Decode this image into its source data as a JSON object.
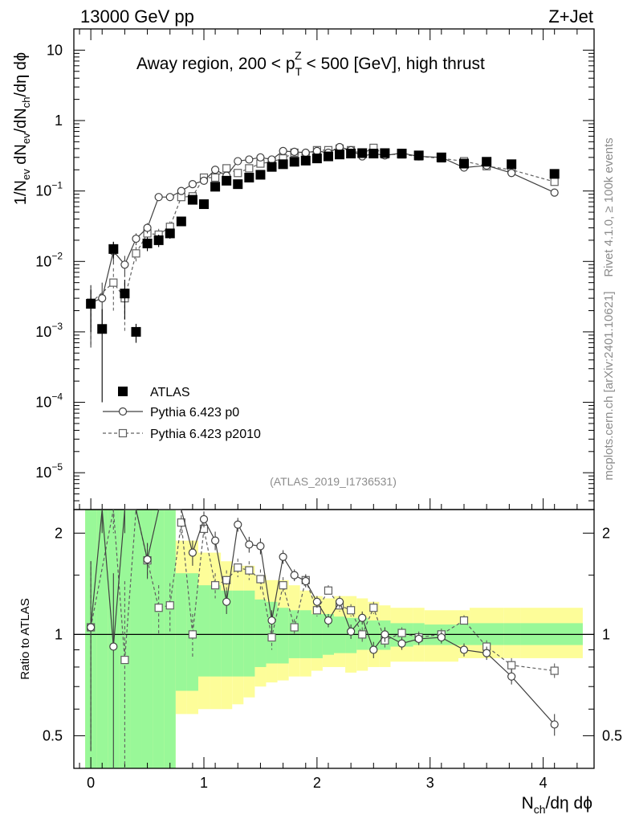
{
  "header": {
    "left": "13000 GeV pp",
    "right": "Z+Jet"
  },
  "side": {
    "rivet": "Rivet 4.1.0, ≥ 100k events",
    "mcplots": "mcplots.cern.ch [arXiv:2401.10621]"
  },
  "chart_data": {
    "type": "scatter",
    "title_parts": [
      "Away region, 200 < p",
      "T",
      "Z",
      " < 500 [GeV], high thrust"
    ],
    "analysis_label": "(ATLAS_2019_I1736531)",
    "xlabel": [
      "N",
      "ch",
      "/dη dϕ"
    ],
    "ylabel": [
      "1/N",
      "ev",
      " dN",
      "ev",
      "/dN",
      "ch",
      "/dη dϕ"
    ],
    "ratio_ylabel": "Ratio to ATLAS",
    "xlim": [
      -0.15,
      4.45
    ],
    "ylim": [
      3e-06,
      20
    ],
    "ratio_ylim": [
      0.4,
      2.35
    ],
    "x_ticks": [
      0,
      1,
      2,
      3,
      4
    ],
    "y_ticks": [
      {
        "v": 1e-05,
        "b": "10",
        "e": "−5"
      },
      {
        "v": 0.0001,
        "b": "10",
        "e": "−4"
      },
      {
        "v": 0.001,
        "b": "10",
        "e": "−3"
      },
      {
        "v": 0.01,
        "b": "10",
        "e": "−2"
      },
      {
        "v": 0.1,
        "b": "10",
        "e": "−1"
      },
      {
        "v": 1,
        "b": "1",
        "e": ""
      },
      {
        "v": 10,
        "b": "10",
        "e": ""
      }
    ],
    "ratio_ticks": [
      {
        "v": 0.5,
        "t": "0.5"
      },
      {
        "v": 1,
        "t": "1"
      },
      {
        "v": 2,
        "t": "2"
      }
    ],
    "legend": [
      "ATLAS",
      "Pythia 6.423 p0",
      "Pythia 6.423 p2010"
    ],
    "x": [
      0.0,
      0.1,
      0.2,
      0.3,
      0.4,
      0.5,
      0.6,
      0.7,
      0.8,
      0.9,
      1.0,
      1.1,
      1.2,
      1.3,
      1.4,
      1.5,
      1.6,
      1.7,
      1.8,
      1.9,
      2.0,
      2.1,
      2.2,
      2.3,
      2.4,
      2.5,
      2.6,
      2.75,
      2.9,
      3.1,
      3.3,
      3.5,
      3.72,
      4.1
    ],
    "atlas": [
      0.0025,
      0.0011,
      0.015,
      0.0035,
      0.001,
      0.018,
      0.02,
      0.025,
      0.037,
      0.075,
      0.065,
      0.115,
      0.14,
      0.125,
      0.155,
      0.17,
      0.22,
      0.24,
      0.26,
      0.27,
      0.29,
      0.31,
      0.33,
      0.34,
      0.345,
      0.34,
      0.345,
      0.34,
      0.32,
      0.3,
      0.245,
      0.26,
      0.24,
      0.175
    ],
    "atlas_err": [
      0.0015,
      0.001,
      0.004,
      0.002,
      0.0003,
      0.004,
      0.004,
      0.004,
      0.005,
      0.01,
      0.008,
      0.01,
      0.01,
      0.01,
      0.01,
      0.01,
      0.015,
      0.015,
      0.015,
      0.015,
      0.015,
      0.015,
      0.015,
      0.015,
      0.015,
      0.015,
      0.015,
      0.015,
      0.015,
      0.015,
      0.012,
      0.012,
      0.012,
      0.01
    ],
    "p0": [
      0.0026,
      0.003,
      0.014,
      0.009,
      0.021,
      0.03,
      0.082,
      0.082,
      0.1,
      0.125,
      0.14,
      0.2,
      0.165,
      0.265,
      0.28,
      0.3,
      0.28,
      0.37,
      0.36,
      0.35,
      0.37,
      0.35,
      0.42,
      0.38,
      0.31,
      0.34,
      0.32,
      0.345,
      0.31,
      0.3,
      0.215,
      0.23,
      0.18,
      0.095
    ],
    "p0_err": [
      0.002,
      0.002,
      0.005,
      0.003,
      0.004,
      0.005,
      0.01,
      0.01,
      0.012,
      0.015,
      0.015,
      0.015,
      0.015,
      0.015,
      0.015,
      0.015,
      0.015,
      0.015,
      0.015,
      0.015,
      0.015,
      0.015,
      0.015,
      0.015,
      0.015,
      0.015,
      0.015,
      0.015,
      0.015,
      0.015,
      0.015,
      0.015,
      0.012,
      0.01
    ],
    "p2010": [
      0.0026,
      null,
      0.005,
      0.003,
      0.013,
      0.025,
      0.024,
      0.031,
      0.082,
      0.084,
      0.155,
      0.155,
      0.21,
      0.18,
      0.21,
      0.245,
      0.26,
      0.29,
      0.35,
      0.32,
      0.38,
      0.38,
      0.4,
      0.38,
      0.34,
      0.41,
      0.33,
      0.33,
      0.31,
      0.29,
      0.265,
      0.225,
      0.2,
      0.135
    ],
    "p2010_err": [
      0.002,
      null,
      0.003,
      0.002,
      0.003,
      0.005,
      0.005,
      0.006,
      0.01,
      0.01,
      0.015,
      0.015,
      0.015,
      0.015,
      0.015,
      0.015,
      0.015,
      0.015,
      0.015,
      0.015,
      0.015,
      0.015,
      0.015,
      0.015,
      0.015,
      0.015,
      0.015,
      0.015,
      0.015,
      0.015,
      0.015,
      0.015,
      0.012,
      0.01
    ],
    "ratio_p0": [
      1.05,
      2.6,
      0.92,
      2.6,
      2.6,
      1.67,
      2.6,
      2.6,
      2.6,
      1.75,
      2.2,
      1.9,
      1.25,
      2.12,
      1.85,
      1.83,
      1.1,
      1.7,
      1.5,
      1.44,
      1.25,
      1.1,
      1.25,
      1.02,
      1.12,
      0.9,
      1.0,
      0.94,
      0.97,
      0.98,
      0.9,
      0.88,
      0.75,
      0.54
    ],
    "ratio_p0_err": [
      0.6,
      0.6,
      0.6,
      0.6,
      0.3,
      0.2,
      0.2,
      0.2,
      0.2,
      0.15,
      0.12,
      0.12,
      0.1,
      0.1,
      0.1,
      0.1,
      0.08,
      0.08,
      0.06,
      0.06,
      0.05,
      0.05,
      0.05,
      0.05,
      0.05,
      0.05,
      0.05,
      0.04,
      0.04,
      0.04,
      0.04,
      0.04,
      0.04,
      0.04
    ],
    "ratio_p2010": [
      1.05,
      null,
      2.6,
      0.84,
      2.6,
      1.66,
      1.2,
      1.22,
      2.15,
      1.0,
      2.06,
      1.4,
      1.45,
      1.58,
      1.55,
      1.46,
      0.98,
      1.4,
      1.05,
      1.45,
      1.18,
      1.35,
      1.22,
      1.18,
      1.0,
      1.2,
      0.96,
      1.01,
      0.98,
      1.0,
      1.1,
      0.92,
      0.81,
      0.78
    ],
    "ratio_p2010_err": [
      0.6,
      null,
      0.6,
      0.6,
      0.3,
      0.2,
      0.2,
      0.2,
      0.2,
      0.15,
      0.12,
      0.12,
      0.1,
      0.1,
      0.1,
      0.1,
      0.08,
      0.08,
      0.06,
      0.06,
      0.05,
      0.05,
      0.05,
      0.05,
      0.05,
      0.05,
      0.05,
      0.04,
      0.04,
      0.04,
      0.04,
      0.04,
      0.04,
      0.04
    ],
    "band_edges": [
      -0.05,
      0.05,
      0.15,
      0.25,
      0.35,
      0.45,
      0.55,
      0.65,
      0.75,
      0.85,
      0.95,
      1.05,
      1.15,
      1.25,
      1.35,
      1.45,
      1.55,
      1.65,
      1.75,
      1.85,
      1.95,
      2.05,
      2.15,
      2.25,
      2.35,
      2.45,
      2.55,
      2.65,
      2.85,
      2.95,
      3.25,
      3.35,
      3.65,
      3.8,
      4.35
    ],
    "band_green": [
      [
        0.4,
        2.35
      ],
      [
        0.4,
        2.35
      ],
      [
        0.4,
        2.35
      ],
      [
        0.4,
        2.35
      ],
      [
        0.4,
        2.35
      ],
      [
        0.4,
        2.35
      ],
      [
        0.4,
        2.35
      ],
      [
        0.4,
        2.35
      ],
      [
        0.68,
        1.52
      ],
      [
        0.68,
        1.52
      ],
      [
        0.75,
        1.4
      ],
      [
        0.75,
        1.4
      ],
      [
        0.75,
        1.35
      ],
      [
        0.75,
        1.35
      ],
      [
        0.75,
        1.35
      ],
      [
        0.8,
        1.27
      ],
      [
        0.82,
        1.25
      ],
      [
        0.82,
        1.2
      ],
      [
        0.85,
        1.18
      ],
      [
        0.85,
        1.18
      ],
      [
        0.85,
        1.15
      ],
      [
        0.87,
        1.15
      ],
      [
        0.88,
        1.13
      ],
      [
        0.88,
        1.12
      ],
      [
        0.9,
        1.12
      ],
      [
        0.9,
        1.1
      ],
      [
        0.9,
        1.1
      ],
      [
        0.92,
        1.08
      ],
      [
        0.93,
        1.08
      ],
      [
        0.93,
        1.07
      ],
      [
        0.93,
        1.08
      ],
      [
        0.93,
        1.08
      ],
      [
        0.93,
        1.08
      ],
      [
        0.93,
        1.08
      ]
    ],
    "band_yellow": [
      [
        0.4,
        2.35
      ],
      [
        0.4,
        2.35
      ],
      [
        0.4,
        2.35
      ],
      [
        0.4,
        2.35
      ],
      [
        0.4,
        2.35
      ],
      [
        0.4,
        2.35
      ],
      [
        0.4,
        2.35
      ],
      [
        0.4,
        2.35
      ],
      [
        0.58,
        1.9
      ],
      [
        0.58,
        1.9
      ],
      [
        0.6,
        1.75
      ],
      [
        0.6,
        1.75
      ],
      [
        0.6,
        1.65
      ],
      [
        0.62,
        1.6
      ],
      [
        0.65,
        1.6
      ],
      [
        0.7,
        1.5
      ],
      [
        0.72,
        1.45
      ],
      [
        0.73,
        1.45
      ],
      [
        0.75,
        1.4
      ],
      [
        0.75,
        1.35
      ],
      [
        0.78,
        1.3
      ],
      [
        0.8,
        1.28
      ],
      [
        0.8,
        1.3
      ],
      [
        0.77,
        1.3
      ],
      [
        0.78,
        1.28
      ],
      [
        0.8,
        1.25
      ],
      [
        0.8,
        1.22
      ],
      [
        0.83,
        1.2
      ],
      [
        0.83,
        1.2
      ],
      [
        0.83,
        1.18
      ],
      [
        0.85,
        1.18
      ],
      [
        0.85,
        1.2
      ],
      [
        0.85,
        1.2
      ],
      [
        0.85,
        1.2
      ]
    ]
  }
}
